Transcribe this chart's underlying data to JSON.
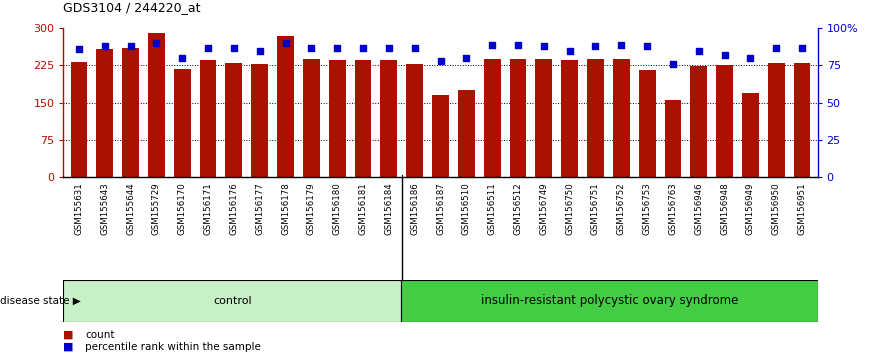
{
  "title": "GDS3104 / 244220_at",
  "samples": [
    "GSM155631",
    "GSM155643",
    "GSM155644",
    "GSM155729",
    "GSM156170",
    "GSM156171",
    "GSM156176",
    "GSM156177",
    "GSM156178",
    "GSM156179",
    "GSM156180",
    "GSM156181",
    "GSM156184",
    "GSM156186",
    "GSM156187",
    "GSM156510",
    "GSM156511",
    "GSM156512",
    "GSM156749",
    "GSM156750",
    "GSM156751",
    "GSM156752",
    "GSM156753",
    "GSM156763",
    "GSM156946",
    "GSM156948",
    "GSM156949",
    "GSM156950",
    "GSM156951"
  ],
  "counts": [
    232,
    258,
    260,
    291,
    218,
    237,
    230,
    227,
    285,
    238,
    237,
    237,
    237,
    228,
    165,
    175,
    238,
    238,
    238,
    237,
    238,
    238,
    215,
    155,
    224,
    225,
    170,
    230,
    230
  ],
  "percentiles": [
    86,
    88,
    88,
    90,
    80,
    87,
    87,
    85,
    90,
    87,
    87,
    87,
    87,
    87,
    78,
    80,
    89,
    89,
    88,
    85,
    88,
    89,
    88,
    76,
    85,
    82,
    80,
    87,
    87
  ],
  "group_labels": [
    "control",
    "insulin-resistant polycystic ovary syndrome"
  ],
  "group_sizes": [
    13,
    16
  ],
  "ctrl_color": "#c8f0c8",
  "pcos_color": "#44cc44",
  "bar_color": "#aa1100",
  "percentile_color": "#0000cc",
  "ylim_left": [
    0,
    300
  ],
  "ylim_right": [
    0,
    100
  ],
  "yticks_left": [
    0,
    75,
    150,
    225,
    300
  ],
  "yticks_right": [
    0,
    25,
    50,
    75,
    100
  ],
  "ytick_labels_left": [
    "0",
    "75",
    "150",
    "225",
    "300"
  ],
  "ytick_labels_right": [
    "0",
    "25",
    "50",
    "75",
    "100%"
  ],
  "disease_state_label": "disease state",
  "legend_count_label": "count",
  "legend_percentile_label": "percentile rank within the sample",
  "bar_width": 0.65
}
